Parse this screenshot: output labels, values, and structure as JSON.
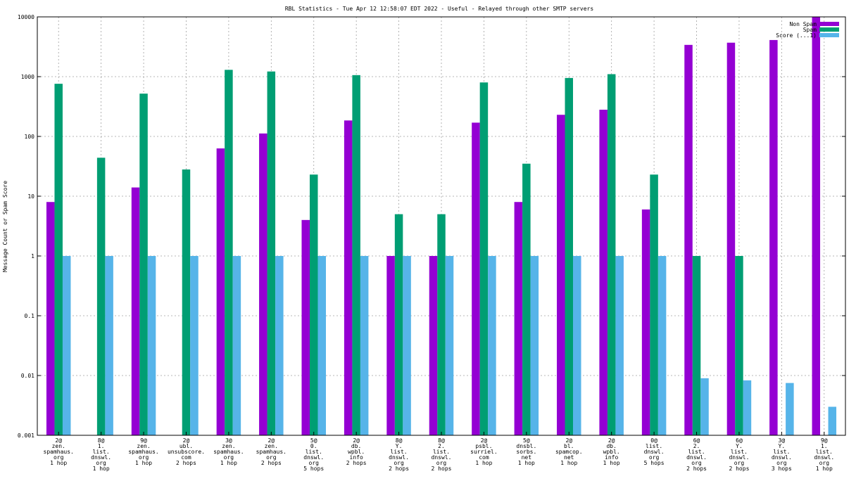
{
  "chart_data": {
    "type": "bar",
    "title": "RBL Statistics - Tue Apr 12 12:58:07 EDT 2022 - Useful - Relayed through other SMTP servers",
    "xlabel": "",
    "ylabel": "Message Count or Spam Score",
    "yscale": "log",
    "ylim": [
      0.001,
      10000
    ],
    "yticks": [
      "0.001",
      "0.01",
      "0.1",
      "1",
      "10",
      "100",
      "1000",
      "10000"
    ],
    "grid": true,
    "legend_position": "top-right",
    "categories": [
      [
        "2@",
        "zen.",
        "spamhaus.",
        "org",
        "1 hop"
      ],
      [
        "8@",
        "1.",
        "list.",
        "dnswl.",
        "org",
        "1 hop"
      ],
      [
        "9@",
        "zen.",
        "spamhaus.",
        "org",
        "1 hop"
      ],
      [
        "2@",
        "ubl.",
        "unsubscore.",
        "com",
        "2 hops"
      ],
      [
        "3@",
        "zen.",
        "spamhaus.",
        "org",
        "1 hop"
      ],
      [
        "2@",
        "zen.",
        "spamhaus.",
        "org",
        "2 hops"
      ],
      [
        "5@",
        "0.",
        "list.",
        "dnswl.",
        "org",
        "5 hops"
      ],
      [
        "2@",
        "db.",
        "wpbl.",
        "info",
        "2 hops"
      ],
      [
        "8@",
        "Y.",
        "list.",
        "dnswl.",
        "org",
        "2 hops"
      ],
      [
        "8@",
        "2.",
        "list.",
        "dnswl.",
        "org",
        "2 hops"
      ],
      [
        "2@",
        "psbl.",
        "surriel.",
        "com",
        "1 hop"
      ],
      [
        "5@",
        "dnsbl.",
        "sorbs.",
        "net",
        "1 hop"
      ],
      [
        "2@",
        "bl.",
        "spamcop.",
        "net",
        "1 hop"
      ],
      [
        "2@",
        "db.",
        "wpbl.",
        "info",
        "1 hop"
      ],
      [
        "0@",
        "list.",
        "dnswl.",
        "org",
        "5 hops"
      ],
      [
        "6@",
        "2.",
        "list.",
        "dnswl.",
        "org",
        "2 hops"
      ],
      [
        "6@",
        "Y.",
        "list.",
        "dnswl.",
        "org",
        "2 hops"
      ],
      [
        "3@",
        "Y.",
        "list.",
        "dnswl.",
        "org",
        "3 hops"
      ],
      [
        "9@",
        "1.",
        "list.",
        "dnswl.",
        "org",
        "1 hop"
      ]
    ],
    "series": [
      {
        "name": "Non Spam",
        "color": "#9400d3",
        "values": [
          8,
          null,
          14,
          null,
          63,
          112,
          4,
          185,
          1,
          1,
          170,
          8,
          230,
          280,
          6,
          3400,
          3700,
          4100,
          10000
        ]
      },
      {
        "name": "Spam",
        "color": "#009e73",
        "values": [
          760,
          44,
          520,
          28,
          1300,
          1220,
          23,
          1060,
          5,
          5,
          800,
          35,
          950,
          1100,
          23,
          1,
          1,
          null,
          null
        ]
      },
      {
        "name": "Score (...1)",
        "color": "#56b4e9",
        "values": [
          1,
          1,
          1,
          1,
          1,
          1,
          1,
          1,
          1,
          1,
          1,
          1,
          1,
          1,
          1,
          0.009,
          0.0083,
          0.0075,
          0.003
        ]
      }
    ]
  }
}
